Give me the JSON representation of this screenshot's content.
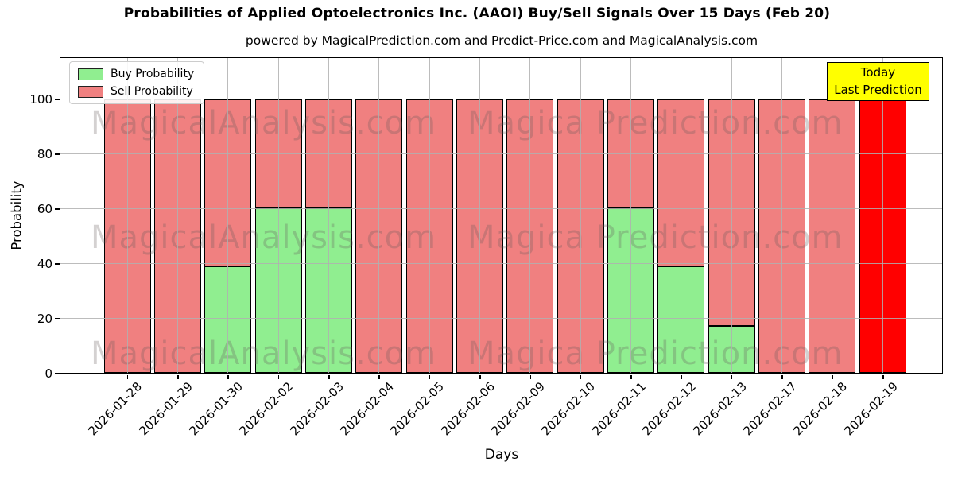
{
  "header": {
    "title": "Probabilities of Applied Optoelectronics Inc. (AAOI) Buy/Sell Signals Over 15 Days (Feb 20)",
    "subtitle": "powered by MagicalPrediction.com and Predict-Price.com and MagicalAnalysis.com"
  },
  "legend": {
    "items": [
      {
        "label": "Buy Probability",
        "color": "#90EE90"
      },
      {
        "label": "Sell Probability",
        "color": "#F08080"
      }
    ]
  },
  "annotation_box": {
    "line1": "Today",
    "line2": "Last Prediction",
    "bg": "#FFFF00"
  },
  "watermarks": {
    "left_text": "MagicalAnalysis.com",
    "right_text": "Magica Prediction.com"
  },
  "colors": {
    "buy": "#90EE90",
    "sell": "#F08080",
    "today_bar": "#FF0000",
    "grid": "#b0b0b0",
    "annotation_bg": "#FFFF00",
    "bar_edge": "#000000"
  },
  "chart_data": {
    "type": "bar",
    "stacked": true,
    "title": "Probabilities of Applied Optoelectronics Inc. (AAOI) Buy/Sell Signals Over 15 Days (Feb 20)",
    "xlabel": "Days",
    "ylabel": "Probability",
    "ylim": [
      0,
      115
    ],
    "yticks": [
      0,
      20,
      40,
      60,
      80,
      100
    ],
    "grid": true,
    "legend_position": "upper left",
    "dashed_hline": 110,
    "categories": [
      "2026-01-28",
      "2026-01-29",
      "2026-01-30",
      "2026-02-02",
      "2026-02-03",
      "2026-02-04",
      "2026-02-05",
      "2026-02-06",
      "2026-02-09",
      "2026-02-10",
      "2026-02-11",
      "2026-02-12",
      "2026-02-13",
      "2026-02-17",
      "2026-02-18",
      "2026-02-19"
    ],
    "series": [
      {
        "name": "Buy Probability",
        "color": "#90EE90",
        "values": [
          0,
          0,
          39,
          60,
          60,
          0,
          0,
          0,
          0,
          0,
          60,
          39,
          17,
          0,
          0,
          0
        ]
      },
      {
        "name": "Sell Probability",
        "color": "#F08080",
        "values": [
          100,
          100,
          61,
          40,
          40,
          100,
          100,
          100,
          100,
          100,
          40,
          61,
          83,
          100,
          100,
          100
        ]
      }
    ],
    "highlight": {
      "index": 15,
      "color": "#FF0000",
      "label": "Today Last Prediction"
    }
  }
}
